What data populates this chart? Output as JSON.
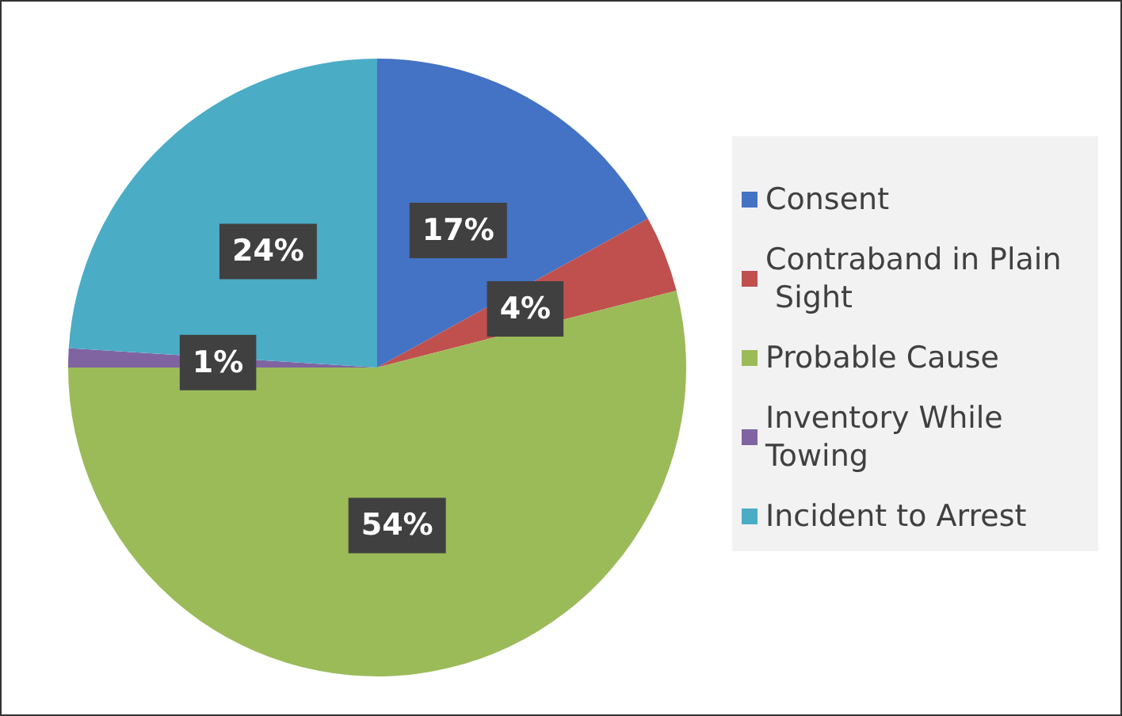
{
  "chart_data": {
    "type": "pie",
    "categories": [
      "Consent",
      "Contraband in Plain Sight",
      "Probable Cause",
      "Inventory While Towing",
      "Incident to Arrest"
    ],
    "values": [
      17,
      4,
      54,
      1,
      24
    ],
    "colors": [
      "#4472c4",
      "#c0504d",
      "#9bbb59",
      "#8064a2",
      "#4bacc6"
    ],
    "value_labels": [
      "17%",
      "4%",
      "54%",
      "1%",
      "24%"
    ],
    "legend": "right"
  }
}
